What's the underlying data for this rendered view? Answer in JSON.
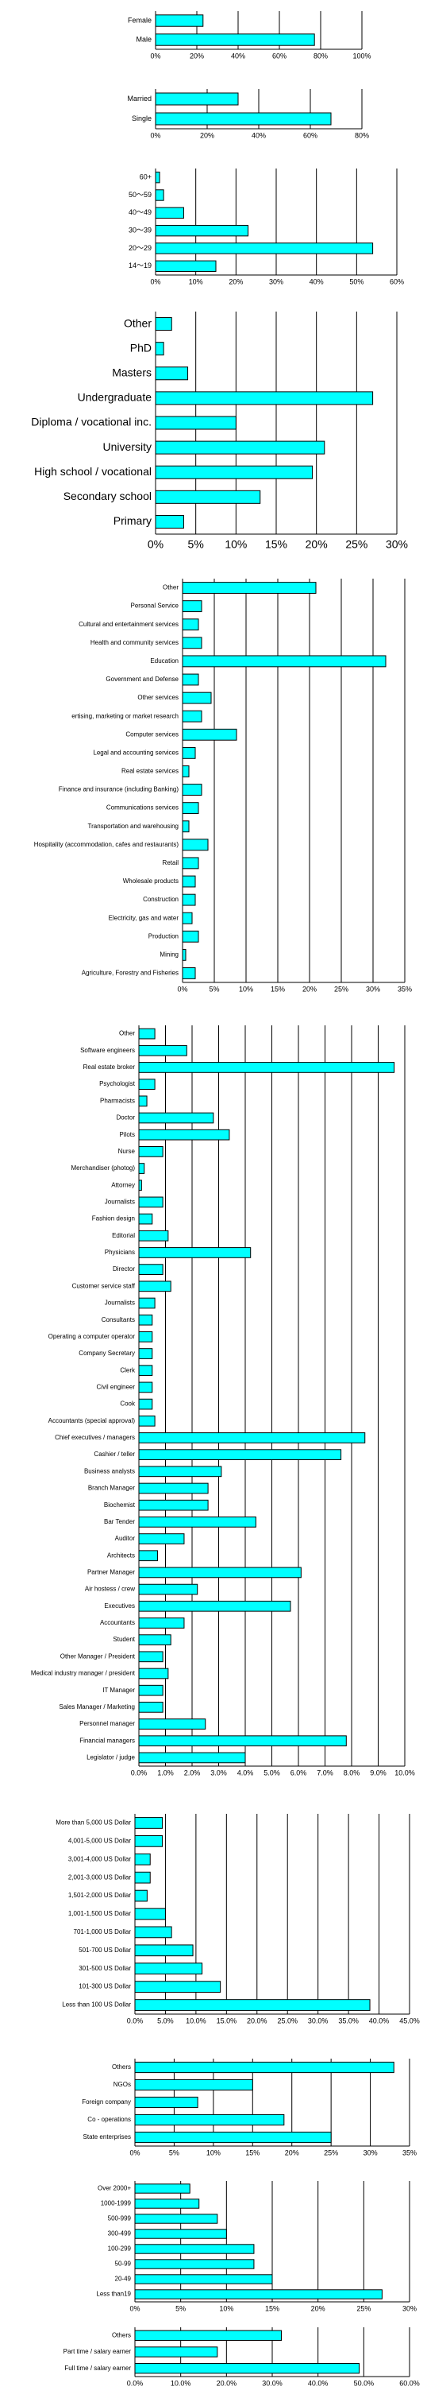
{
  "chart_data": [
    {
      "type": "bar",
      "orientation": "horizontal",
      "color": "#00ffff",
      "grid": true,
      "categories": [
        "Female",
        "Male"
      ],
      "values": [
        23,
        77
      ],
      "xlim": [
        0,
        100
      ],
      "xticks": [
        {
          "value": 0,
          "label": "0%"
        },
        {
          "value": 20,
          "label": "20%"
        },
        {
          "value": 40,
          "label": "40%"
        },
        {
          "value": 60,
          "label": "60%"
        },
        {
          "value": 80,
          "label": "80%"
        },
        {
          "value": 100,
          "label": "100%"
        }
      ]
    },
    {
      "type": "bar",
      "orientation": "horizontal",
      "color": "#00ffff",
      "grid": true,
      "categories": [
        "Married",
        "Single"
      ],
      "values": [
        32,
        68
      ],
      "xlim": [
        0,
        80
      ],
      "xticks": [
        {
          "value": 0,
          "label": "0%"
        },
        {
          "value": 20,
          "label": "20%"
        },
        {
          "value": 40,
          "label": "40%"
        },
        {
          "value": 60,
          "label": "60%"
        },
        {
          "value": 80,
          "label": "80%"
        }
      ]
    },
    {
      "type": "bar",
      "orientation": "horizontal",
      "color": "#00ffff",
      "grid": true,
      "categories": [
        "60+",
        "50～59",
        "40～49",
        "30～39",
        "20～29",
        "14～19"
      ],
      "values": [
        1,
        2,
        7,
        23,
        54,
        15
      ],
      "xlim": [
        0,
        60
      ],
      "xticks": [
        {
          "value": 0,
          "label": "0%"
        },
        {
          "value": 10,
          "label": "10%"
        },
        {
          "value": 20,
          "label": "20%"
        },
        {
          "value": 30,
          "label": "30%"
        },
        {
          "value": 40,
          "label": "40%"
        },
        {
          "value": 50,
          "label": "50%"
        },
        {
          "value": 60,
          "label": "60%"
        }
      ]
    },
    {
      "type": "bar",
      "orientation": "horizontal",
      "color": "#00ffff",
      "grid": true,
      "categories": [
        "Other",
        "PhD",
        "Masters",
        "Undergraduate",
        "Diploma / vocational inc.",
        "University",
        "High school / vocational",
        "Secondary school",
        "Primary"
      ],
      "values": [
        2,
        1,
        4,
        27,
        10,
        21,
        19.5,
        13,
        3.5
      ],
      "xlim": [
        0,
        30
      ],
      "xticks": [
        {
          "value": 0,
          "label": "0%"
        },
        {
          "value": 5,
          "label": "5%"
        },
        {
          "value": 10,
          "label": "10%"
        },
        {
          "value": 15,
          "label": "15%"
        },
        {
          "value": 20,
          "label": "20%"
        },
        {
          "value": 25,
          "label": "25%"
        },
        {
          "value": 30,
          "label": "30%"
        }
      ]
    },
    {
      "type": "bar",
      "orientation": "horizontal",
      "color": "#00ffff",
      "grid": true,
      "categories": [
        "Other",
        "Personal Service",
        "Cultural and entertainment services",
        "Health and community services",
        "Education",
        "Government and Defense",
        "Other services",
        "ertising, marketing or market research",
        "Computer services",
        "Legal and accounting services",
        "Real estate services",
        "Finance and insurance (including Banking)",
        "Communications services",
        "Transportation and warehousing",
        "Hospitality (accommodation, cafes and restaurants)",
        "Retail",
        "Wholesale products",
        "Construction",
        "Electricity, gas and water",
        "Production",
        "Mining",
        "Agriculture, Forestry and Fisheries"
      ],
      "values": [
        21,
        3,
        2.5,
        3,
        32,
        2.5,
        4.5,
        3,
        8.5,
        2,
        1,
        3,
        2.5,
        1,
        4,
        2.5,
        2,
        2,
        1.5,
        2.5,
        0.5,
        2
      ],
      "xlim": [
        0,
        35
      ],
      "xticks": [
        {
          "value": 0,
          "label": "0%"
        },
        {
          "value": 5,
          "label": "5%"
        },
        {
          "value": 10,
          "label": "10%"
        },
        {
          "value": 15,
          "label": "15%"
        },
        {
          "value": 20,
          "label": "20%"
        },
        {
          "value": 25,
          "label": "25%"
        },
        {
          "value": 30,
          "label": "30%"
        },
        {
          "value": 35,
          "label": "35%"
        }
      ]
    },
    {
      "type": "bar",
      "orientation": "horizontal",
      "color": "#00ffff",
      "grid": true,
      "categories": [
        "Other",
        "Software engineers",
        "Real estate broker",
        "Psychologist",
        "Pharmacists",
        "Doctor",
        "Pilots",
        "Nurse",
        "Merchandiser (photog)",
        "Attorney",
        "Journalists",
        "Fashion design",
        "Editorial",
        "Physicians",
        "Director",
        "Customer service staff",
        "Journalists",
        "Consultants",
        "Operating a computer operator",
        "Company Secretary",
        "Clerk",
        "Civil engineer",
        "Cook",
        "Accountants (special approval)",
        "Chief executives / managers",
        "Cashier / teller",
        "Business analysts",
        "Branch Manager",
        "Biochemist",
        "Bar Tender",
        "Auditor",
        "Architects",
        "Partner Manager",
        "Air hostess / crew",
        "Executives",
        "Accountants",
        "Student",
        "Other Manager / President",
        "Medical industry manager / president",
        "IT Manager",
        "Sales Manager / Marketing",
        "Personnel manager",
        "Financial managers",
        "Legislator / judge"
      ],
      "values": [
        0.6,
        1.8,
        9.6,
        0.6,
        0.3,
        2.8,
        3.4,
        0.9,
        0.2,
        0.1,
        0.9,
        0.5,
        1.1,
        4.2,
        0.9,
        1.2,
        0.6,
        0.5,
        0.5,
        0.5,
        0.5,
        0.5,
        0.5,
        0.6,
        8.5,
        7.6,
        3.1,
        2.6,
        2.6,
        4.4,
        1.7,
        0.7,
        6.1,
        2.2,
        5.7,
        1.7,
        1.2,
        0.9,
        1.1,
        0.9,
        0.9,
        2.5,
        7.8,
        4.0
      ],
      "xlim": [
        0,
        10
      ],
      "xticks": [
        {
          "value": 0,
          "label": "0.0%"
        },
        {
          "value": 1,
          "label": "1.0%"
        },
        {
          "value": 2,
          "label": "2.0%"
        },
        {
          "value": 3,
          "label": "3.0%"
        },
        {
          "value": 4,
          "label": "4.0%"
        },
        {
          "value": 5,
          "label": "5.0%"
        },
        {
          "value": 6,
          "label": "6.0%"
        },
        {
          "value": 7,
          "label": "7.0%"
        },
        {
          "value": 8,
          "label": "8.0%"
        },
        {
          "value": 9,
          "label": "9.0%"
        },
        {
          "value": 10,
          "label": "10.0%"
        }
      ]
    },
    {
      "type": "bar",
      "orientation": "horizontal",
      "color": "#00ffff",
      "grid": true,
      "categories": [
        "More than 5,000 US Dollar",
        "4,001-5,000 US Dollar",
        "3,001-4,000 US Dollar",
        "2,001-3,000 US Dollar",
        "1,501-2,000 US Dollar",
        "1,001-1,500 US Dollar",
        "701-1,000 US Dollar",
        "501-700 US Dollar",
        "301-500 US Dollar",
        "101-300 US Dollar",
        "Less than 100 US Dollar"
      ],
      "values": [
        4.5,
        4.5,
        2.5,
        2.5,
        2,
        5,
        6,
        9.5,
        11,
        14,
        38.5
      ],
      "xlim": [
        0,
        45
      ],
      "xticks": [
        {
          "value": 0,
          "label": "0.0%"
        },
        {
          "value": 5,
          "label": "5.0%"
        },
        {
          "value": 10,
          "label": "10.0%"
        },
        {
          "value": 15,
          "label": "15.0%"
        },
        {
          "value": 20,
          "label": "20.0%"
        },
        {
          "value": 25,
          "label": "25.0%"
        },
        {
          "value": 30,
          "label": "30.0%"
        },
        {
          "value": 35,
          "label": "35.0%"
        },
        {
          "value": 40,
          "label": "40.0%"
        },
        {
          "value": 45,
          "label": "45.0%"
        }
      ]
    },
    {
      "type": "bar",
      "orientation": "horizontal",
      "color": "#00ffff",
      "grid": true,
      "categories": [
        "Others",
        "NGOs",
        "Foreign company",
        "Co - operations",
        "State enterprises"
      ],
      "values": [
        33,
        15,
        8,
        19,
        25
      ],
      "xlim": [
        0,
        35
      ],
      "xticks": [
        {
          "value": 0,
          "label": "0%"
        },
        {
          "value": 5,
          "label": "5%"
        },
        {
          "value": 10,
          "label": "10%"
        },
        {
          "value": 15,
          "label": "15%"
        },
        {
          "value": 20,
          "label": "20%"
        },
        {
          "value": 25,
          "label": "25%"
        },
        {
          "value": 30,
          "label": "30%"
        },
        {
          "value": 35,
          "label": "35%"
        }
      ]
    },
    {
      "type": "bar",
      "orientation": "horizontal",
      "color": "#00ffff",
      "grid": true,
      "categories": [
        "Over 2000+",
        "1000-1999",
        "500-999",
        "300-499",
        "100-299",
        "50-99",
        "20-49",
        "Less than19"
      ],
      "values": [
        6,
        7,
        9,
        10,
        13,
        13,
        15,
        27
      ],
      "xlim": [
        0,
        30
      ],
      "xticks": [
        {
          "value": 0,
          "label": "0%"
        },
        {
          "value": 5,
          "label": "5%"
        },
        {
          "value": 10,
          "label": "10%"
        },
        {
          "value": 15,
          "label": "15%"
        },
        {
          "value": 20,
          "label": "20%"
        },
        {
          "value": 25,
          "label": "25%"
        },
        {
          "value": 30,
          "label": "30%"
        }
      ]
    },
    {
      "type": "bar",
      "orientation": "horizontal",
      "color": "#00ffff",
      "grid": true,
      "categories": [
        "Others",
        "Part time / salary earner",
        "Full time / salary earner"
      ],
      "values": [
        32,
        18,
        49
      ],
      "xlim": [
        0,
        60
      ],
      "xticks": [
        {
          "value": 0,
          "label": "0.0%"
        },
        {
          "value": 10,
          "label": "10.0%"
        },
        {
          "value": 20,
          "label": "20.0%"
        },
        {
          "value": 30,
          "label": "30.0%"
        },
        {
          "value": 40,
          "label": "40.0%"
        },
        {
          "value": 50,
          "label": "50.0%"
        },
        {
          "value": 60,
          "label": "60.0%"
        }
      ]
    }
  ]
}
